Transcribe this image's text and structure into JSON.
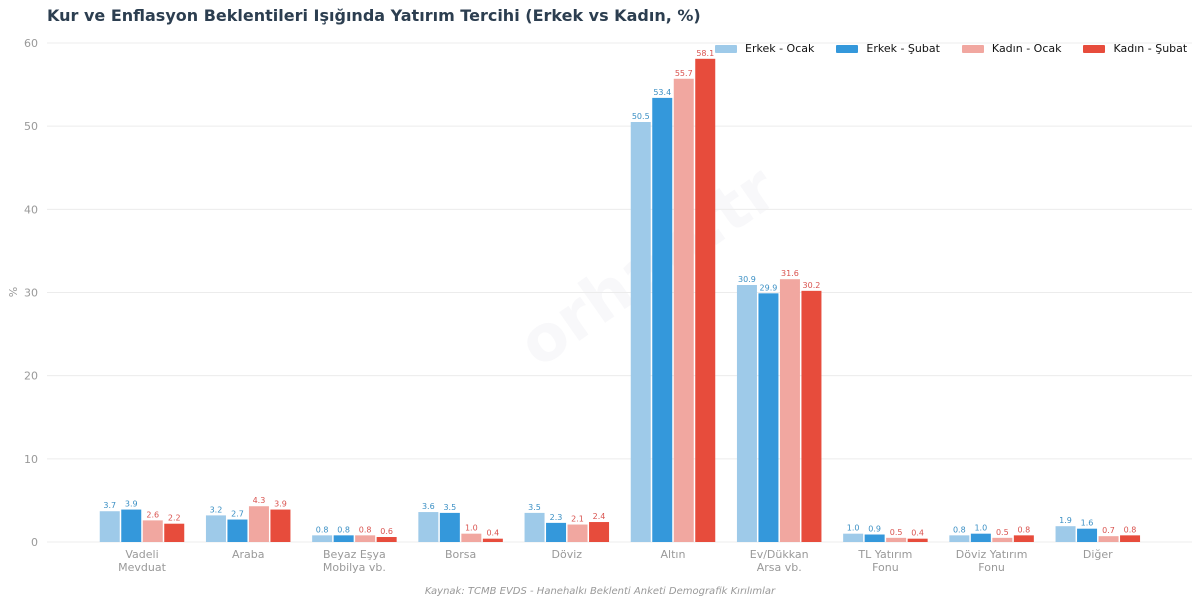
{
  "title": "Kur ve Enflasyon Beklentileri Işığında Yatırım Tercihi (Erkek vs Kadın, %)",
  "source": "Kaynak: TCMB EVDS - Hanehalkı Beklenti Anketi Demografik Kırılımlar",
  "watermark": "orhan.tr",
  "colors": {
    "erkek_ocak": "#9ecae9",
    "erkek_subat": "#3498db",
    "kadin_ocak": "#f1a7a0",
    "kadin_subat": "#e74c3c",
    "erkek_label": "#3a8fc4",
    "kadin_label": "#d9534f"
  },
  "chart_data": {
    "type": "bar",
    "title": "Kur ve Enflasyon Beklentileri Işığında Yatırım Tercihi (Erkek vs Kadın, %)",
    "xlabel": "",
    "ylabel": "%",
    "ylim": [
      0,
      60
    ],
    "yticks": [
      0,
      10,
      20,
      30,
      40,
      50,
      60
    ],
    "grid": true,
    "legend_position": "top-right",
    "categories": [
      [
        "Vadeli",
        "Mevduat"
      ],
      [
        "Araba"
      ],
      [
        "Beyaz Eşya",
        "Mobilya vb."
      ],
      [
        "Borsa"
      ],
      [
        "Döviz"
      ],
      [
        "Altın"
      ],
      [
        "Ev/Dükkan",
        "Arsa vb."
      ],
      [
        "TL Yatırım",
        "Fonu"
      ],
      [
        "Döviz Yatırım",
        "Fonu"
      ],
      [
        "Diğer"
      ]
    ],
    "series": [
      {
        "name": "Erkek - Ocak",
        "color_key": "erkek_ocak",
        "label_color_key": "erkek_label",
        "values": [
          3.7,
          3.2,
          0.8,
          3.6,
          3.5,
          50.5,
          30.9,
          1.0,
          0.8,
          1.9
        ]
      },
      {
        "name": "Erkek - Şubat",
        "color_key": "erkek_subat",
        "label_color_key": "erkek_label",
        "values": [
          3.9,
          2.7,
          0.8,
          3.5,
          2.3,
          53.4,
          29.9,
          0.9,
          1.0,
          1.6
        ]
      },
      {
        "name": "Kadın - Ocak",
        "color_key": "kadin_ocak",
        "label_color_key": "kadin_label",
        "values": [
          2.6,
          4.3,
          0.8,
          1.0,
          2.1,
          55.7,
          31.6,
          0.5,
          0.5,
          0.7
        ]
      },
      {
        "name": "Kadın - Şubat",
        "color_key": "kadin_subat",
        "label_color_key": "kadin_label",
        "values": [
          2.2,
          3.9,
          0.6,
          0.4,
          2.4,
          58.1,
          30.2,
          0.4,
          0.8,
          0.8
        ]
      }
    ]
  }
}
